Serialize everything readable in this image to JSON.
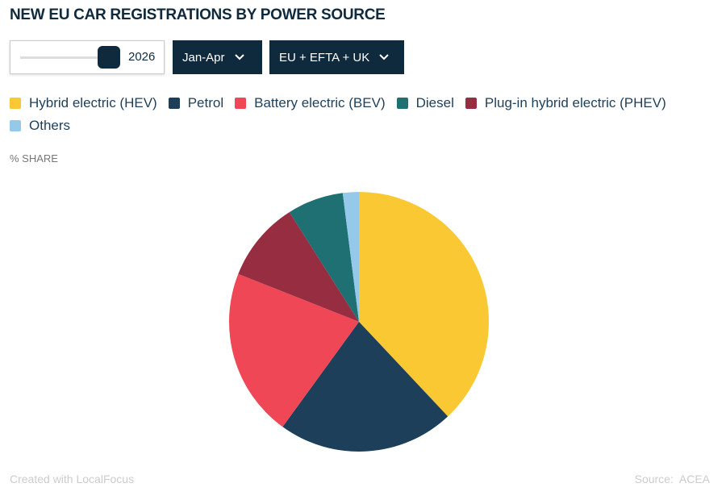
{
  "chart_data": {
    "type": "pie",
    "title": "NEW EU CAR REGISTRATIONS BY POWER SOURCE",
    "unit_label": "% SHARE",
    "categories": [
      "Hybrid electric (HEV)",
      "Petrol",
      "Battery electric (BEV)",
      "Diesel",
      "Plug-in hybrid electric (PHEV)",
      "Others"
    ],
    "pie_order": [
      0,
      1,
      2,
      4,
      3,
      5
    ],
    "values": [
      38,
      22,
      21,
      7,
      10,
      2
    ],
    "colors": [
      "#f9c832",
      "#1e3f5a",
      "#ef4756",
      "#1e7072",
      "#962d40",
      "#95c9ea"
    ]
  },
  "controls": {
    "year": "2026",
    "period": "Jan-Apr",
    "region": "EU + EFTA + UK"
  },
  "footer": {
    "credit": "Created with LocalFocus",
    "source": "Source:  ACEA"
  }
}
